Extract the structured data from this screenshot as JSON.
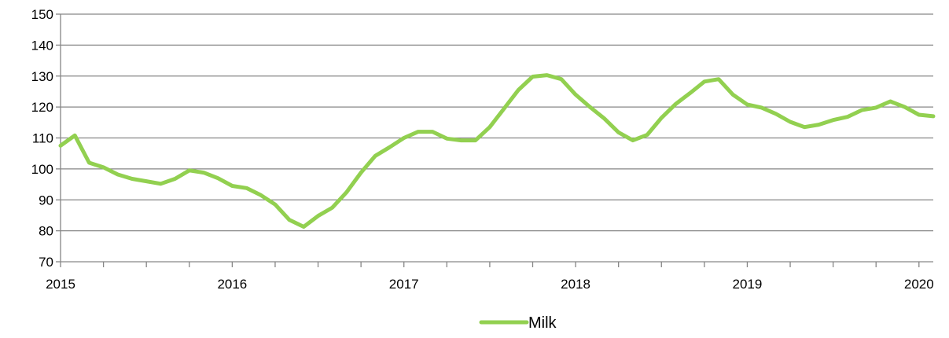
{
  "chart_data": {
    "type": "line",
    "title": "",
    "xlabel": "",
    "ylabel": "",
    "ylim": [
      70,
      150
    ],
    "y_ticks": [
      70,
      80,
      90,
      100,
      110,
      120,
      130,
      140,
      150
    ],
    "y_tick_labels": [
      "70",
      "80",
      "90",
      "100",
      "110",
      "120",
      "130",
      "140",
      "150"
    ],
    "x_tick_labels": [
      "2015",
      "2016",
      "2017",
      "2018",
      "2019",
      "2020"
    ],
    "x_start": "2015-01",
    "x_end": "2020-02",
    "grid": "horizontal",
    "legend_position": "bottom",
    "series": [
      {
        "name": "Milk",
        "color": "#92D050",
        "x": [
          "2015-01",
          "2015-02",
          "2015-03",
          "2015-04",
          "2015-05",
          "2015-06",
          "2015-07",
          "2015-08",
          "2015-09",
          "2015-10",
          "2015-11",
          "2015-12",
          "2016-01",
          "2016-02",
          "2016-03",
          "2016-04",
          "2016-05",
          "2016-06",
          "2016-07",
          "2016-08",
          "2016-09",
          "2016-10",
          "2016-11",
          "2016-12",
          "2017-01",
          "2017-02",
          "2017-03",
          "2017-04",
          "2017-05",
          "2017-06",
          "2017-07",
          "2017-08",
          "2017-09",
          "2017-10",
          "2017-11",
          "2017-12",
          "2018-01",
          "2018-02",
          "2018-03",
          "2018-04",
          "2018-05",
          "2018-06",
          "2018-07",
          "2018-08",
          "2018-09",
          "2018-10",
          "2018-11",
          "2018-12",
          "2019-01",
          "2019-02",
          "2019-03",
          "2019-04",
          "2019-05",
          "2019-06",
          "2019-07",
          "2019-08",
          "2019-09",
          "2019-10",
          "2019-11",
          "2019-12",
          "2020-01",
          "2020-02"
        ],
        "values": [
          107.5,
          110.8,
          102.0,
          100.5,
          98.2,
          96.8,
          96.0,
          95.2,
          96.8,
          99.5,
          98.8,
          97.0,
          94.5,
          93.8,
          91.5,
          88.5,
          83.5,
          81.3,
          84.8,
          87.5,
          92.5,
          98.8,
          104.2,
          107.0,
          110.0,
          112.0,
          112.0,
          109.8,
          109.2,
          109.2,
          113.5,
          119.5,
          125.5,
          129.8,
          130.3,
          129.0,
          124.0,
          120.0,
          116.3,
          111.8,
          109.2,
          111.0,
          116.5,
          121.0,
          124.5,
          128.2,
          129.0,
          124.0,
          120.8,
          119.8,
          117.8,
          115.2,
          113.5,
          114.3,
          115.8,
          116.8,
          119.0,
          119.8,
          121.8,
          120.0,
          117.5,
          117.0
        ]
      }
    ]
  }
}
